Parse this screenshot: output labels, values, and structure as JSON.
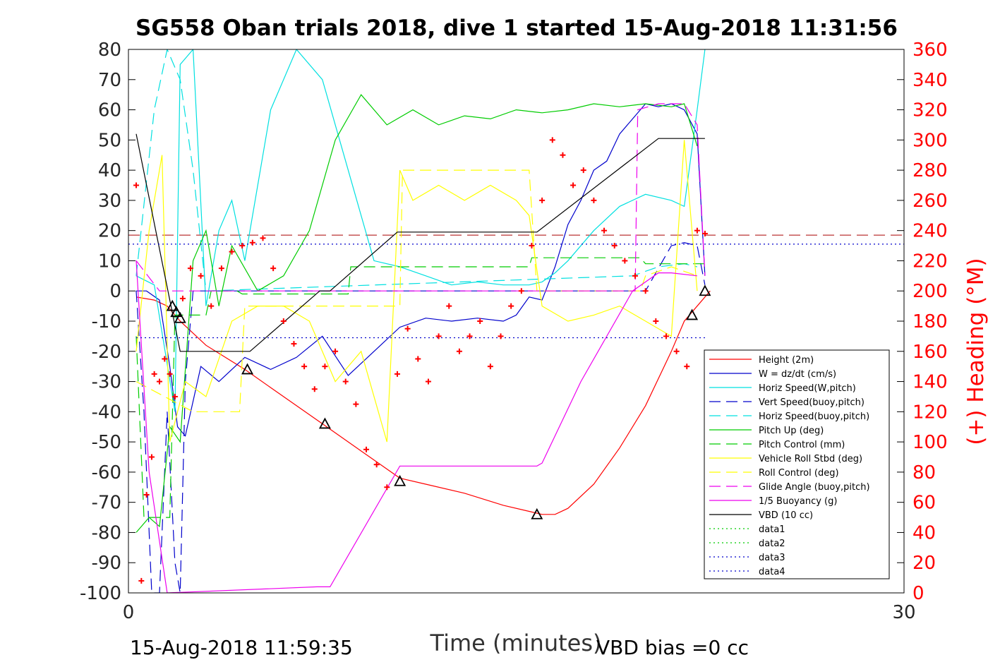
{
  "chart_data": {
    "type": "line",
    "title": "SG558 Oban trials 2018, dive 1 started 15-Aug-2018 11:31:56",
    "xlabel": "Time (minutes)",
    "ylabel": "",
    "ylabel_right": "(+) Heading (°M)",
    "xlim": [
      0,
      30
    ],
    "ylim": [
      -100,
      80
    ],
    "ylim_right": [
      0,
      360
    ],
    "x_ticks": [
      "0",
      "30"
    ],
    "y_ticks": [
      "80",
      "70",
      "60",
      "50",
      "40",
      "30",
      "20",
      "10",
      "0",
      "-10",
      "-20",
      "-30",
      "-40",
      "-50",
      "-60",
      "-70",
      "-80",
      "-90",
      "-100"
    ],
    "y_right_ticks": [
      "360",
      "340",
      "320",
      "300",
      "280",
      "260",
      "240",
      "220",
      "200",
      "180",
      "160",
      "140",
      "120",
      "100",
      "80",
      "60",
      "40",
      "20",
      "0"
    ],
    "footer_left": "15-Aug-2018 11:59:35",
    "footer_right": "VBD bias =0 cc",
    "grid": false,
    "legend_position": "bottom-right",
    "series": [
      {
        "name": "Height (2m)",
        "color": "#ff0000",
        "dash": "solid",
        "x": [
          0.3,
          1.0,
          1.5,
          2.0,
          3.0,
          4.5,
          5.5,
          7.5,
          9.5,
          10.5,
          11.5,
          13.0,
          14.5,
          15.5,
          16.0,
          16.5,
          17.0,
          18.0,
          19.0,
          20.0,
          21.0,
          21.5,
          22.5
        ],
        "y": [
          -2,
          -3,
          -5,
          -10,
          -18,
          -26,
          -32,
          -44,
          -56,
          -62,
          -64,
          -67,
          -71,
          -73,
          -74,
          -74,
          -72,
          -64,
          -52,
          -38,
          -20,
          -10,
          0
        ]
      },
      {
        "name": "W = dz/dt (cm/s)",
        "color": "#0000cc",
        "dash": "solid",
        "x": [
          0.3,
          0.7,
          1.2,
          1.6,
          1.9,
          2.2,
          2.8,
          3.5,
          4.5,
          5.5,
          6.5,
          7.5,
          8.5,
          9.5,
          10.5,
          11.5,
          12.5,
          13.5,
          14.5,
          15.0,
          15.5,
          16.0,
          16.5,
          17.0,
          17.5,
          18.0,
          18.5,
          19.0,
          19.5,
          20.0,
          20.5,
          21.0,
          21.5,
          22.0,
          22.3
        ],
        "y": [
          0,
          0,
          -3,
          -25,
          -45,
          -48,
          -25,
          -30,
          -22,
          -26,
          -22,
          -15,
          -28,
          -20,
          -12,
          -9,
          -10,
          -9,
          -10,
          -8,
          -2,
          -3,
          8,
          22,
          30,
          40,
          43,
          52,
          57,
          62,
          61,
          62,
          60,
          52,
          5
        ]
      },
      {
        "name": "Horiz Speed(W,pitch)",
        "color": "#00e0e0",
        "dash": "solid",
        "x": [
          0.3,
          1.0,
          1.8,
          2.0,
          2.5,
          3.0,
          3.5,
          4.0,
          4.5,
          5.5,
          6.5,
          7.5,
          8.5,
          9.5,
          10.5,
          11.5,
          12.5,
          13.5,
          14.5,
          15.5,
          16.0,
          16.5,
          17.0,
          18.0,
          19.0,
          20.0,
          21.0,
          21.5,
          22.0,
          22.3
        ],
        "y": [
          5,
          2,
          -40,
          75,
          80,
          -5,
          20,
          30,
          10,
          60,
          80,
          70,
          40,
          10,
          8,
          5,
          2,
          3,
          2,
          2,
          3,
          6,
          10,
          20,
          28,
          32,
          30,
          28,
          60,
          80
        ]
      },
      {
        "name": "Vert Speed(buoy,pitch)",
        "color": "#0000cc",
        "dash": "longdash",
        "x": [
          0.3,
          0.6,
          0.9,
          1.2,
          1.5,
          1.8,
          2.0,
          2.2,
          2.5,
          20.0,
          21.0,
          21.5,
          22.0,
          22.3
        ],
        "y": [
          0,
          -40,
          -100,
          -100,
          -40,
          -90,
          -100,
          -30,
          0,
          0,
          15,
          16,
          15,
          2
        ]
      },
      {
        "name": "Horiz Speed(buoy,pitch)",
        "color": "#00e0e0",
        "dash": "longdash",
        "x": [
          0.3,
          1.0,
          1.5,
          2.0,
          2.5,
          3.0,
          19.5,
          20.5,
          21.5,
          22.0
        ],
        "y": [
          5,
          60,
          80,
          70,
          40,
          0,
          5,
          8,
          9,
          8
        ]
      },
      {
        "name": "Pitch Up (deg)",
        "color": "#00cc00",
        "dash": "solid",
        "x": [
          0.3,
          0.8,
          1.2,
          1.6,
          2.0,
          2.5,
          3.0,
          3.5,
          4.0,
          5.0,
          6.0,
          7.0,
          8.0,
          9.0,
          10.0,
          11.0,
          12.0,
          13.0,
          14.0,
          15.0,
          16.0,
          17.0,
          18.0,
          19.0,
          20.0,
          21.0,
          21.5,
          22.0
        ],
        "y": [
          -80,
          -75,
          -78,
          -45,
          -50,
          10,
          20,
          -5,
          15,
          0,
          5,
          20,
          50,
          65,
          55,
          60,
          55,
          58,
          57,
          60,
          59,
          60,
          62,
          61,
          62,
          61,
          62,
          48
        ]
      },
      {
        "name": "Pitch Control (mm)",
        "color": "#00cc00",
        "dash": "longdash",
        "x": [
          0.3,
          0.6,
          1.0,
          1.6,
          1.8,
          3.0,
          3.2,
          4.2,
          4.4,
          8.5,
          8.6,
          15.5,
          15.6,
          19.8,
          20.0,
          22.3
        ],
        "y": [
          -15,
          -75,
          -75,
          -75,
          -8,
          -8,
          0,
          0,
          -1,
          -1,
          8,
          8,
          11,
          11,
          9,
          9
        ]
      },
      {
        "name": "Vehicle Roll Stbd (deg)",
        "color": "#ffff00",
        "dash": "solid",
        "x": [
          0.3,
          0.8,
          1.3,
          1.6,
          2.2,
          3.0,
          4.0,
          5.0,
          6.0,
          7.0,
          8.0,
          9.0,
          10.0,
          10.5,
          11.0,
          12.0,
          13.0,
          14.0,
          15.0,
          15.5,
          16.0,
          17.0,
          18.0,
          19.0,
          20.0,
          21.0,
          21.5,
          22.0
        ],
        "y": [
          -20,
          20,
          45,
          -50,
          -30,
          -35,
          -10,
          -5,
          -5,
          -10,
          -30,
          -20,
          -50,
          40,
          30,
          35,
          30,
          35,
          30,
          25,
          -5,
          -10,
          -8,
          -5,
          -10,
          -15,
          50,
          0
        ]
      },
      {
        "name": "Roll Control (deg)",
        "color": "#ffff00",
        "dash": "longdash",
        "x": [
          0.3,
          2.5,
          4.3,
          4.5,
          10.5,
          10.6,
          15.5,
          15.8,
          19.8,
          20.0,
          21.0,
          22.0
        ],
        "y": [
          -30,
          -40,
          -40,
          -5,
          -5,
          40,
          40,
          0,
          0,
          5,
          8,
          5
        ]
      },
      {
        "name": "Glide Angle (buoy,pitch)",
        "color": "#ee00ee",
        "dash": "longdash",
        "x": [
          0.3,
          1.2,
          1.5,
          3.0,
          3.1,
          19.6,
          19.7,
          20.5,
          21.5,
          22.0,
          22.3
        ],
        "y": [
          10,
          0,
          0,
          0,
          0,
          0,
          60,
          62,
          62,
          55,
          5
        ]
      },
      {
        "name": "1/5 Buoyancy (g)",
        "color": "#ee00ee",
        "dash": "solid",
        "x": [
          0.3,
          0.8,
          1.5,
          7.3,
          7.8,
          10.5,
          15.8,
          16.0,
          17.5,
          19.5,
          20.5,
          21.0,
          22.0
        ],
        "y": [
          10,
          -60,
          -100,
          -98,
          -98,
          -58,
          -58,
          -57,
          -30,
          0,
          6,
          6,
          5
        ]
      },
      {
        "name": "VBD (10 cc)",
        "color": "#000000",
        "dash": "solid",
        "x": [
          0.3,
          2.0,
          4.7,
          7.4,
          7.8,
          10.4,
          15.8,
          20.5,
          22.3
        ],
        "y": [
          52,
          -20,
          -20,
          0,
          0,
          19.5,
          19.5,
          50.5,
          50.5
        ]
      },
      {
        "name": "data1",
        "color": "#00cc00",
        "dash": "dotted",
        "x": [],
        "y": []
      },
      {
        "name": "data2",
        "color": "#00cc00",
        "dash": "dotted",
        "x": [],
        "y": []
      },
      {
        "name": "data3",
        "color": "#0000cc",
        "dash": "dotted",
        "x": [
          0,
          30
        ],
        "y": [
          15.5,
          15.5
        ]
      },
      {
        "name": "data4",
        "color": "#0000cc",
        "dash": "dotted",
        "x": [
          0.3,
          22.3
        ],
        "y": [
          -15.5,
          -15.5
        ]
      }
    ],
    "unlabeled_reference_line": {
      "color": "#aa0000",
      "dash": "longdash",
      "y": 18.5
    },
    "heading_points": {
      "color": "#ff0000",
      "axis": "right",
      "x": [
        0.3,
        0.5,
        0.7,
        0.9,
        1.0,
        1.2,
        1.4,
        1.6,
        1.8,
        2.1,
        2.4,
        2.8,
        3.2,
        3.6,
        4.0,
        4.4,
        4.8,
        5.2,
        5.6,
        6.0,
        6.4,
        6.8,
        7.2,
        7.6,
        8.0,
        8.4,
        8.8,
        9.2,
        9.6,
        10.0,
        10.4,
        10.8,
        11.2,
        11.6,
        12.0,
        12.4,
        12.8,
        13.2,
        13.6,
        14.0,
        14.4,
        14.8,
        15.2,
        15.6,
        16.0,
        16.4,
        16.8,
        17.2,
        17.6,
        18.0,
        18.4,
        18.8,
        19.2,
        19.6,
        20.0,
        20.4,
        20.8,
        21.2,
        21.6,
        22.0,
        22.3
      ],
      "y": [
        270,
        8,
        65,
        90,
        145,
        140,
        155,
        145,
        130,
        195,
        215,
        210,
        190,
        215,
        226,
        230,
        232,
        235,
        215,
        180,
        165,
        150,
        135,
        150,
        160,
        140,
        125,
        95,
        85,
        70,
        145,
        175,
        155,
        140,
        170,
        190,
        160,
        170,
        180,
        150,
        170,
        190,
        200,
        230,
        260,
        300,
        290,
        270,
        280,
        260,
        240,
        230,
        220,
        210,
        200,
        180,
        170,
        160,
        150,
        240,
        238
      ]
    },
    "markers": {
      "symbol": "triangle",
      "color": "#000000",
      "x": [
        1.7,
        1.85,
        2.0,
        4.6,
        7.6,
        10.5,
        15.8,
        21.8,
        22.3
      ],
      "y": [
        -5,
        -7,
        -9,
        -26,
        -44,
        -63,
        -74,
        -8,
        0
      ]
    }
  }
}
